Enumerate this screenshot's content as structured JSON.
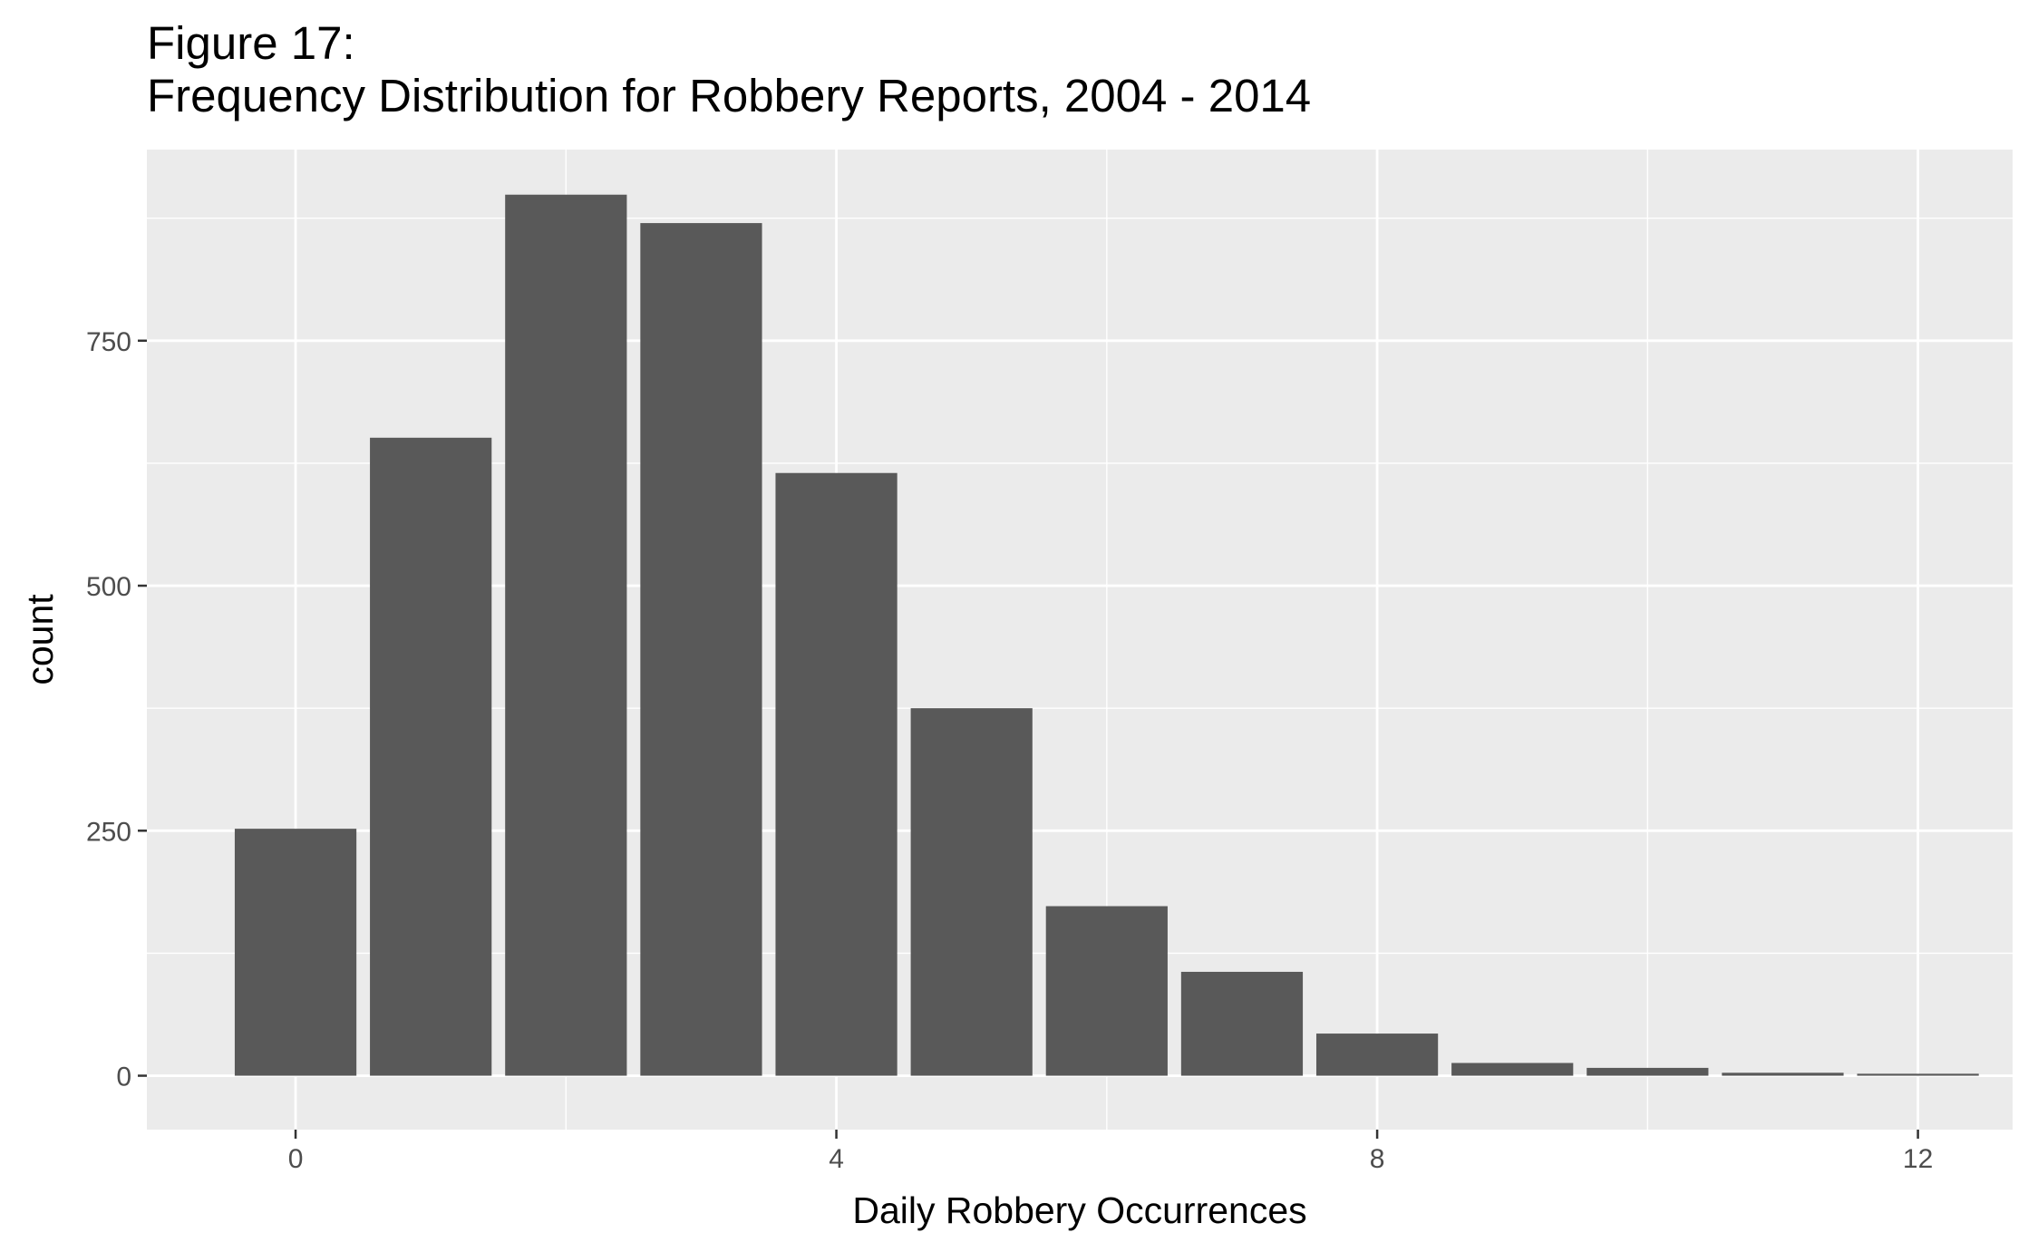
{
  "title_line1": "Figure 17:",
  "title_line2": "Frequency Distribution for Robbery Reports, 2004 - 2014",
  "chart_data": {
    "type": "bar",
    "title": "Figure 17: Frequency Distribution for Robbery Reports, 2004 - 2014",
    "xlabel": "Daily Robbery Occurrences",
    "ylabel": "count",
    "x": [
      0,
      1,
      2,
      3,
      4,
      5,
      6,
      7,
      8,
      9,
      10,
      11,
      12
    ],
    "values": [
      252,
      651,
      899,
      870,
      615,
      375,
      173,
      106,
      43,
      13,
      8,
      3,
      2
    ],
    "xlim": [
      -1.1,
      12.7
    ],
    "ylim": [
      -55,
      945
    ],
    "x_ticks": [
      0,
      4,
      8,
      12
    ],
    "x_tick_labels": [
      "0",
      "4",
      "8",
      "12"
    ],
    "y_ticks": [
      0,
      250,
      500,
      750
    ],
    "y_tick_labels": [
      "0",
      "250",
      "500",
      "750"
    ],
    "grid": true,
    "panel_color": "#ebebeb",
    "grid_color": "#ffffff",
    "bar_color": "#595959",
    "tick_label_color": "#4d4d4d"
  }
}
